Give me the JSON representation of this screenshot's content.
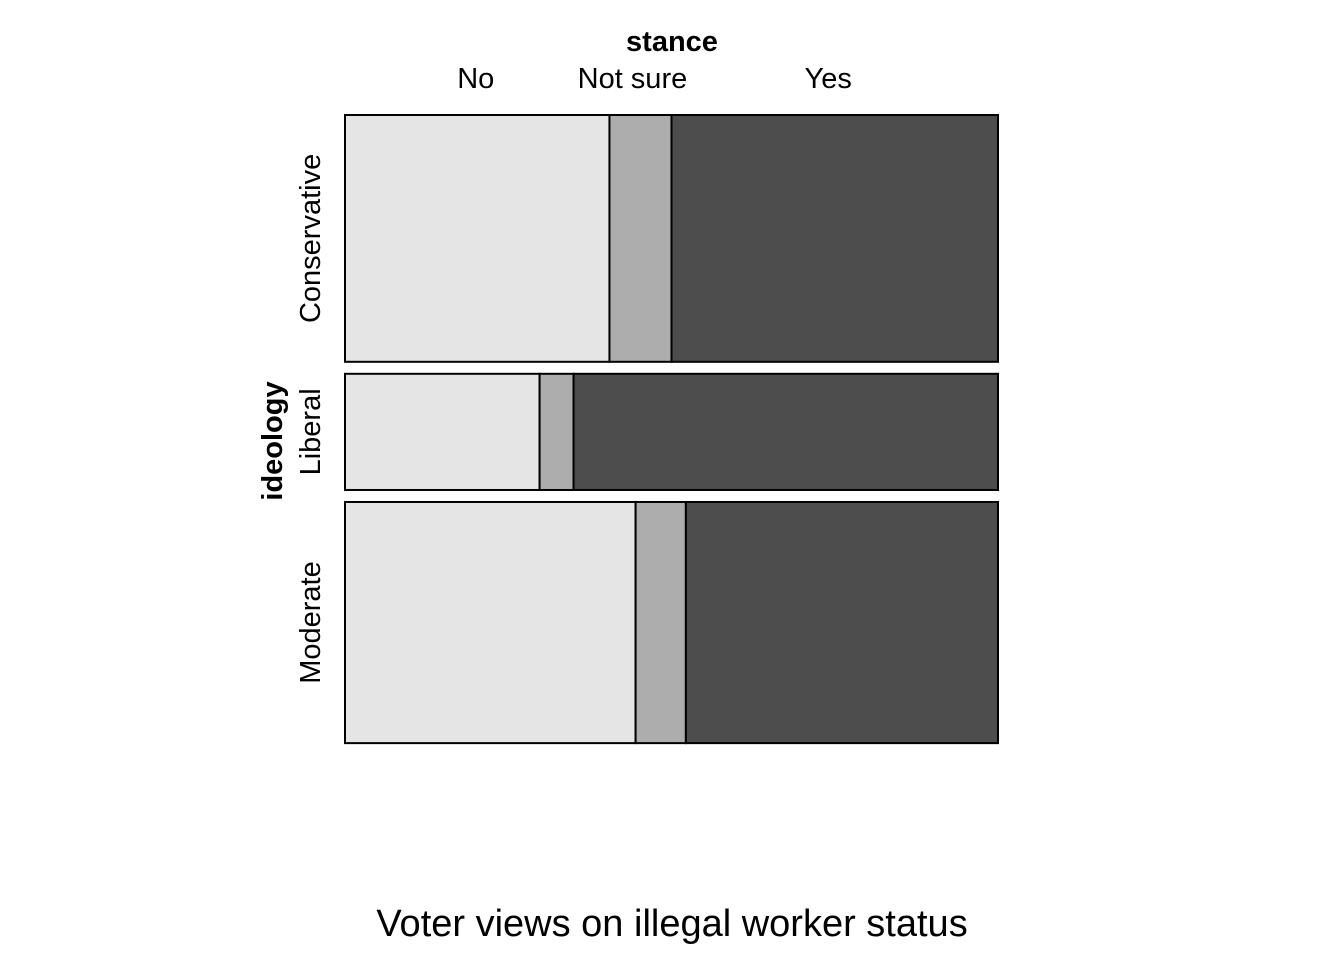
{
  "chart_data": {
    "type": "mosaic",
    "caption": "Voter views on illegal worker status",
    "column_variable": "stance",
    "row_variable": "ideology",
    "columns": [
      "No",
      "Not sure",
      "Yes"
    ],
    "rows": [
      {
        "label": "Conservative",
        "share": 0.393,
        "values": [
          0.405,
          0.095,
          0.5
        ]
      },
      {
        "label": "Liberal",
        "share": 0.185,
        "values": [
          0.298,
          0.052,
          0.65
        ]
      },
      {
        "label": "Moderate",
        "share": 0.384,
        "values": [
          0.445,
          0.077,
          0.478
        ]
      }
    ],
    "colors": [
      "#e5e5e5",
      "#adadad",
      "#4d4d4d"
    ]
  }
}
